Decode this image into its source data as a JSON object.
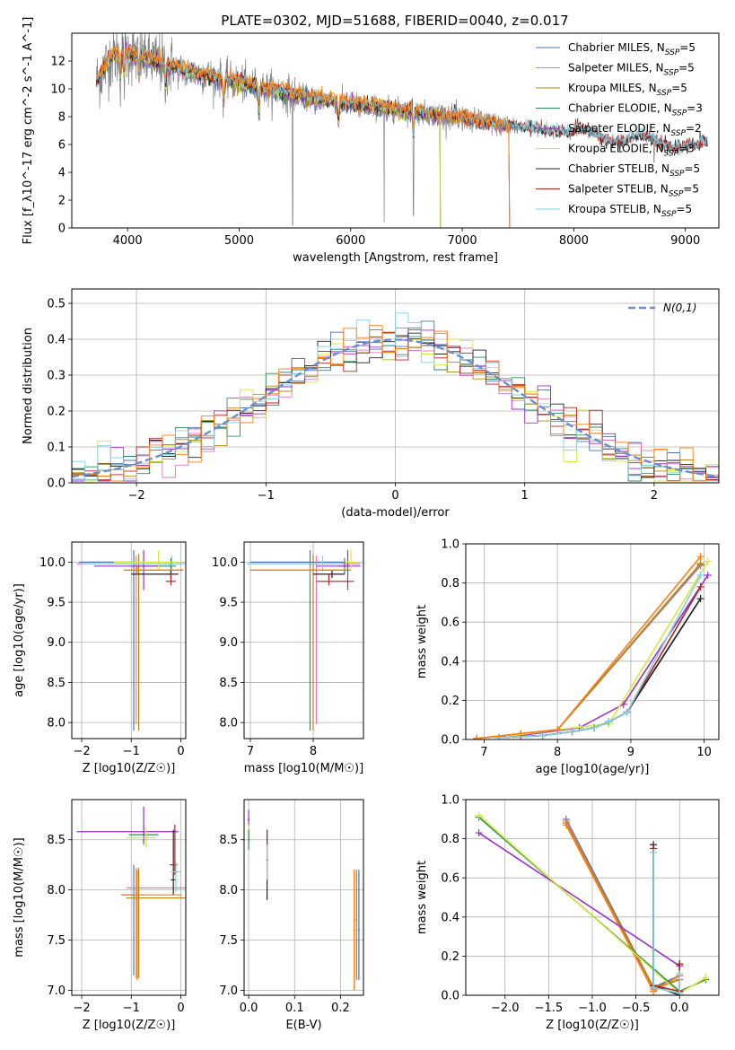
{
  "figure_title": "PLATE=0302, MJD=51688, FIBERID=0040, z=0.017",
  "colors": {
    "chabrier_miles": "#4c72b0",
    "salpeter_miles": "#e377c2",
    "kroupa_miles": "#b8860b",
    "chabrier_elodie": "#2e8b57",
    "salpeter_elodie": "#9932cc",
    "kroupa_elodie": "#d4e83a",
    "chabrier_stelib": "#222222",
    "salpeter_stelib": "#b22222",
    "kroupa_stelib": "#7fd3e0",
    "orange": "#ff7f0e",
    "data_gray": "#808080",
    "normal_curve": "#6a8fd0",
    "grid": "#b0b0b0"
  },
  "chart_data": [
    {
      "id": "spectrum",
      "type": "line",
      "xlabel": "wavelength [Angstrom, rest frame]",
      "ylabel": "Flux [f_λ10^-17 erg cm^-2 s^-1 A^-1]",
      "xlim": [
        3500,
        9300
      ],
      "ylim": [
        0,
        14
      ],
      "xticks": [
        4000,
        5000,
        6000,
        7000,
        8000,
        9000
      ],
      "yticks": [
        0,
        2,
        4,
        6,
        8,
        10,
        12
      ],
      "grid": false,
      "legend_position": "upper-right",
      "legend": [
        {
          "label": "Chabrier MILES, N",
          "sub": "SSP",
          "suffix": "=5",
          "color_key": "chabrier_miles"
        },
        {
          "label": "Salpeter MILES, N",
          "sub": "SSP",
          "suffix": "=5",
          "color_key": "salpeter_miles"
        },
        {
          "label": "Kroupa MILES, N",
          "sub": "SSP",
          "suffix": "=5",
          "color_key": "kroupa_miles"
        },
        {
          "label": "Chabrier ELODIE, N",
          "sub": "SSP",
          "suffix": "=3",
          "color_key": "chabrier_elodie"
        },
        {
          "label": "Salpeter ELODIE, N",
          "sub": "SSP",
          "suffix": "=2",
          "color_key": "salpeter_elodie"
        },
        {
          "label": "Kroupa ELODIE, N",
          "sub": "SSP",
          "suffix": "=3",
          "color_key": "kroupa_elodie"
        },
        {
          "label": "Chabrier STELIB, N",
          "sub": "SSP",
          "suffix": "=5",
          "color_key": "chabrier_stelib"
        },
        {
          "label": "Salpeter STELIB, N",
          "sub": "SSP",
          "suffix": "=5",
          "color_key": "salpeter_stelib"
        },
        {
          "label": "Kroupa STELIB, N",
          "sub": "SSP",
          "suffix": "=5",
          "color_key": "kroupa_stelib"
        }
      ],
      "continuum_x": [
        3720,
        3850,
        4000,
        4200,
        4500,
        4800,
        5000,
        5300,
        5600,
        6000,
        6300,
        6600,
        7000,
        7400,
        7800,
        8200,
        8600,
        9000,
        9200
      ],
      "continuum_y": [
        10.5,
        12.3,
        12.6,
        12.1,
        11.3,
        10.8,
        10.4,
        9.9,
        9.4,
        8.9,
        8.6,
        8.3,
        7.9,
        7.3,
        6.9,
        6.6,
        6.2,
        5.9,
        5.7
      ]
    },
    {
      "id": "residuals",
      "type": "histogram",
      "xlabel": "(data-model)/error",
      "ylabel": "Normed distribution",
      "xlim": [
        -2.5,
        2.5
      ],
      "ylim": [
        0,
        0.54
      ],
      "xticks": [
        -2,
        -1,
        0,
        1,
        2
      ],
      "yticks": [
        0.0,
        0.1,
        0.2,
        0.3,
        0.4,
        0.5
      ],
      "grid": true,
      "legend_position": "upper-right",
      "legend": [
        {
          "label": "N(0,1)",
          "color_key": "normal_curve"
        }
      ]
    },
    {
      "id": "age_vs_Z",
      "type": "scatter",
      "xlabel": "Z [log10(Z/Z☉)]",
      "ylabel": "age  [log10(age/yr)]",
      "xlim": [
        -2.2,
        0.1
      ],
      "ylim": [
        7.8,
        10.25
      ],
      "xticks": [
        -2,
        -1,
        0
      ],
      "yticks": [
        8.0,
        8.5,
        9.0,
        9.5,
        10.0
      ],
      "grid": true
    },
    {
      "id": "age_vs_mass",
      "type": "scatter",
      "xlabel": "mass [log10(M/M☉)]",
      "xlim": [
        6.9,
        8.8
      ],
      "ylim": [
        7.8,
        10.25
      ],
      "xticks": [
        7,
        8
      ],
      "yticks": [
        8.0,
        8.5,
        9.0,
        9.5,
        10.0
      ],
      "grid": true
    },
    {
      "id": "weight_vs_age",
      "type": "line",
      "xlabel": "age  [log10(age/yr)]",
      "ylabel": "mass weight",
      "xlim": [
        6.75,
        10.2
      ],
      "ylim": [
        0,
        1.0
      ],
      "xticks": [
        7,
        8,
        9,
        10
      ],
      "yticks": [
        0.0,
        0.2,
        0.4,
        0.6,
        0.8,
        1.0
      ],
      "grid": true
    },
    {
      "id": "mass_vs_Z",
      "type": "scatter",
      "xlabel": "Z [log10(Z/Z☉)]",
      "ylabel": "mass [log10(M/M☉)]",
      "xlim": [
        -2.2,
        0.1
      ],
      "ylim": [
        6.95,
        8.9
      ],
      "xticks": [
        -2,
        -1,
        0
      ],
      "yticks": [
        7.0,
        7.5,
        8.0,
        8.5
      ],
      "grid": true
    },
    {
      "id": "mass_vs_ebv",
      "type": "scatter",
      "xlabel": "E(B-V)",
      "xlim": [
        -0.01,
        0.25
      ],
      "ylim": [
        6.95,
        8.9
      ],
      "xticks": [
        0.0,
        0.1,
        0.2
      ],
      "yticks": [
        7.0,
        7.5,
        8.0,
        8.5
      ],
      "grid": true
    },
    {
      "id": "weight_vs_Z",
      "type": "line",
      "xlabel": "Z [log10(Z/Z☉)]",
      "ylabel": "mass weight",
      "xlim": [
        -2.45,
        0.45
      ],
      "ylim": [
        0,
        1.0
      ],
      "xticks": [
        -2.0,
        -1.5,
        -1.0,
        -0.5,
        0.0
      ],
      "yticks": [
        0.0,
        0.2,
        0.4,
        0.6,
        0.8,
        1.0
      ],
      "grid": true
    }
  ]
}
